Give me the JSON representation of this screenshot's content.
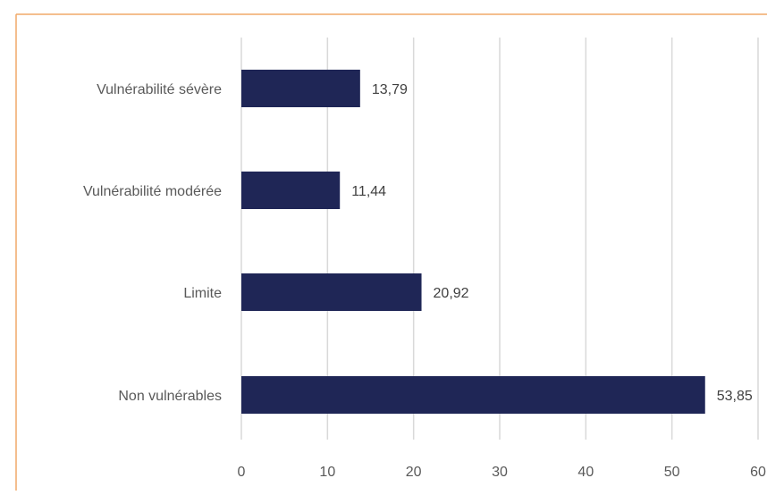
{
  "chart_data": {
    "type": "bar",
    "orientation": "horizontal",
    "categories": [
      "Vulnérabilité sévère",
      "Vulnérabilité modérée",
      "Limite",
      "Non vulnérables"
    ],
    "values": [
      13.79,
      11.44,
      20.92,
      53.85
    ],
    "value_labels": [
      "13,79",
      "11,44",
      "20,92",
      "53,85"
    ],
    "xlim": [
      0,
      60
    ],
    "xticks": [
      "0",
      "10",
      "20",
      "30",
      "40",
      "50",
      "60"
    ],
    "grid": "vertical",
    "legend": "none",
    "title": "",
    "xlabel": "",
    "ylabel": "",
    "colors": {
      "bar": "#1f2656",
      "grid": "#d9d9d9",
      "frame": "#f0a868",
      "text": "#595959",
      "value_text": "#404040"
    }
  }
}
